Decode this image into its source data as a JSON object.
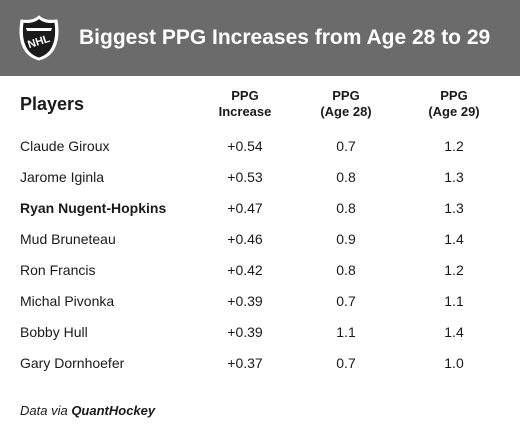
{
  "header": {
    "title": "Biggest PPG Increases from Age 28 to 29",
    "logo_icon": "nhl-shield-logo",
    "logo_text": "NHL",
    "background": "#6b6b6b"
  },
  "table": {
    "columns": {
      "player": "Players",
      "increase_line1": "PPG",
      "increase_line2": "Increase",
      "age28_line1": "PPG",
      "age28_line2": "(Age 28)",
      "age29_line1": "PPG",
      "age29_line2": "(Age 29)"
    },
    "rows": [
      {
        "player": "Claude Giroux",
        "increase": "+0.54",
        "age28": "0.7",
        "age29": "1.2",
        "highlight": false
      },
      {
        "player": "Jarome Iginla",
        "increase": "+0.53",
        "age28": "0.8",
        "age29": "1.3",
        "highlight": false
      },
      {
        "player": "Ryan Nugent-Hopkins",
        "increase": "+0.47",
        "age28": "0.8",
        "age29": "1.3",
        "highlight": true
      },
      {
        "player": "Mud Bruneteau",
        "increase": "+0.46",
        "age28": "0.9",
        "age29": "1.4",
        "highlight": false
      },
      {
        "player": "Ron Francis",
        "increase": "+0.42",
        "age28": "0.8",
        "age29": "1.2",
        "highlight": false
      },
      {
        "player": "Michal Pivonka",
        "increase": "+0.39",
        "age28": "0.7",
        "age29": "1.1",
        "highlight": false
      },
      {
        "player": "Bobby Hull",
        "increase": "+0.39",
        "age28": "1.1",
        "age29": "1.4",
        "highlight": false
      },
      {
        "player": "Gary Dornhoefer",
        "increase": "+0.37",
        "age28": "0.7",
        "age29": "1.0",
        "highlight": false
      }
    ]
  },
  "footer": {
    "prefix": "Data via ",
    "source": "QuantHockey"
  }
}
